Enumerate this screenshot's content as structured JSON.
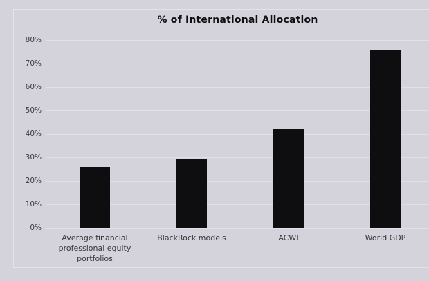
{
  "chart": {
    "title": "% of International Allocation",
    "bar_color": "#0e0d10",
    "background_color": "#d4d3db",
    "gridline_color": "#e1e0e8",
    "border_color": "#e4e3ea",
    "axis_label_color": "#35353c",
    "title_color": "#0f0f12"
  },
  "chart_data": {
    "type": "bar",
    "title": "% of International Allocation",
    "categories": [
      "Average financial professional equity portfolios",
      "BlackRock models",
      "ACWI",
      "World GDP"
    ],
    "values": [
      26,
      29,
      42,
      76
    ],
    "xlabel": "",
    "ylabel": "",
    "ylim": [
      0,
      80
    ],
    "ytick_step": 10,
    "ytick_labels": [
      "0%",
      "10%",
      "20%",
      "30%",
      "40%",
      "50%",
      "60%",
      "70%",
      "80%"
    ],
    "grid": true,
    "legend": false
  }
}
